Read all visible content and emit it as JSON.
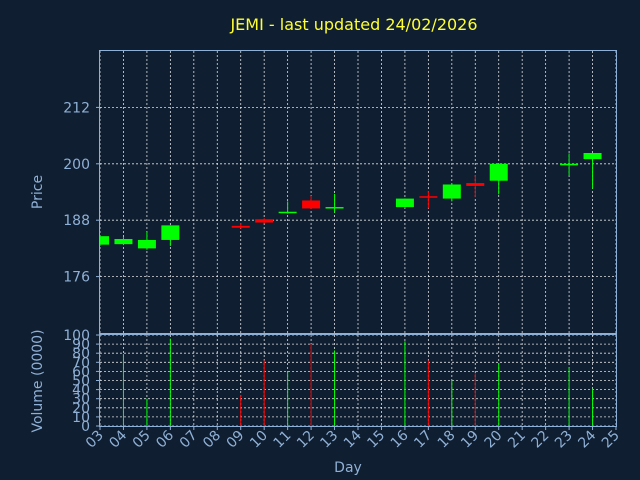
{
  "title": "JEMI - last updated 24/02/2026",
  "chart_data": [
    {
      "type": "candlestick",
      "ylabel": "Price",
      "ylim": [
        164,
        224
      ],
      "yticks": [
        176,
        188,
        200,
        212
      ],
      "grid": true,
      "up_color": "#00ff00",
      "down_color": "#ff0000",
      "candles": [
        {
          "day": "03",
          "open": 182.8,
          "high": 184.6,
          "low": 182.5,
          "close": 184.6
        },
        {
          "day": "04",
          "open": 182.9,
          "high": 184.4,
          "low": 182.7,
          "close": 184.0
        },
        {
          "day": "05",
          "open": 182.0,
          "high": 185.5,
          "low": 181.7,
          "close": 183.8
        },
        {
          "day": "06",
          "open": 183.8,
          "high": 186.9,
          "low": 182.5,
          "close": 186.9
        },
        {
          "day": "09",
          "open": 186.8,
          "high": 187.4,
          "low": 186.2,
          "close": 186.4
        },
        {
          "day": "10",
          "open": 188.2,
          "high": 188.4,
          "low": 187.3,
          "close": 187.5
        },
        {
          "day": "11",
          "open": 189.6,
          "high": 192.0,
          "low": 189.4,
          "close": 189.8
        },
        {
          "day": "12",
          "open": 192.2,
          "high": 193.2,
          "low": 190.4,
          "close": 190.5
        },
        {
          "day": "13",
          "open": 190.6,
          "high": 193.6,
          "low": 189.6,
          "close": 190.8
        },
        {
          "day": "16",
          "open": 190.8,
          "high": 192.6,
          "low": 190.6,
          "close": 192.6
        },
        {
          "day": "17",
          "open": 193.1,
          "high": 194.2,
          "low": 190.5,
          "close": 192.8
        },
        {
          "day": "18",
          "open": 192.6,
          "high": 195.8,
          "low": 192.0,
          "close": 195.6
        },
        {
          "day": "19",
          "open": 195.9,
          "high": 197.6,
          "low": 192.9,
          "close": 195.3
        },
        {
          "day": "20",
          "open": 196.4,
          "high": 200.0,
          "low": 193.5,
          "close": 200.0
        },
        {
          "day": "23",
          "open": 199.8,
          "high": 202.2,
          "low": 197.5,
          "close": 200.0
        },
        {
          "day": "24",
          "open": 201.0,
          "high": 202.3,
          "low": 194.7,
          "close": 202.3
        }
      ]
    },
    {
      "type": "bar",
      "ylabel": "Volume (0000)",
      "xlabel": "Day",
      "ylim": [
        0,
        100
      ],
      "yticks": [
        0,
        10,
        20,
        30,
        40,
        50,
        60,
        70,
        80,
        90,
        100
      ],
      "grid": true,
      "volumes": [
        {
          "day": "03",
          "value": 0,
          "color": "#00ff00"
        },
        {
          "day": "04",
          "value": 79,
          "color": "#00ff00"
        },
        {
          "day": "05",
          "value": 30,
          "color": "#00ff00"
        },
        {
          "day": "06",
          "value": 96,
          "color": "#00ff00"
        },
        {
          "day": "09",
          "value": 34,
          "color": "#ff0000"
        },
        {
          "day": "10",
          "value": 72,
          "color": "#ff0000"
        },
        {
          "day": "11",
          "value": 60,
          "color": "#00ff00"
        },
        {
          "day": "12",
          "value": 90,
          "color": "#ff0000"
        },
        {
          "day": "13",
          "value": 83,
          "color": "#00ff00"
        },
        {
          "day": "16",
          "value": 93,
          "color": "#00ff00"
        },
        {
          "day": "17",
          "value": 72,
          "color": "#ff0000"
        },
        {
          "day": "18",
          "value": 50,
          "color": "#00ff00"
        },
        {
          "day": "19",
          "value": 58,
          "color": "#ff0000"
        },
        {
          "day": "20",
          "value": 69,
          "color": "#00ff00"
        },
        {
          "day": "23",
          "value": 64,
          "color": "#00ff00"
        },
        {
          "day": "24",
          "value": 41,
          "color": "#00ff00"
        }
      ]
    }
  ],
  "x_tick_labels": [
    "03",
    "04",
    "05",
    "06",
    "07",
    "08",
    "09",
    "10",
    "11",
    "12",
    "13",
    "14",
    "15",
    "16",
    "17",
    "18",
    "19",
    "20",
    "21",
    "22",
    "23",
    "24",
    "25"
  ]
}
